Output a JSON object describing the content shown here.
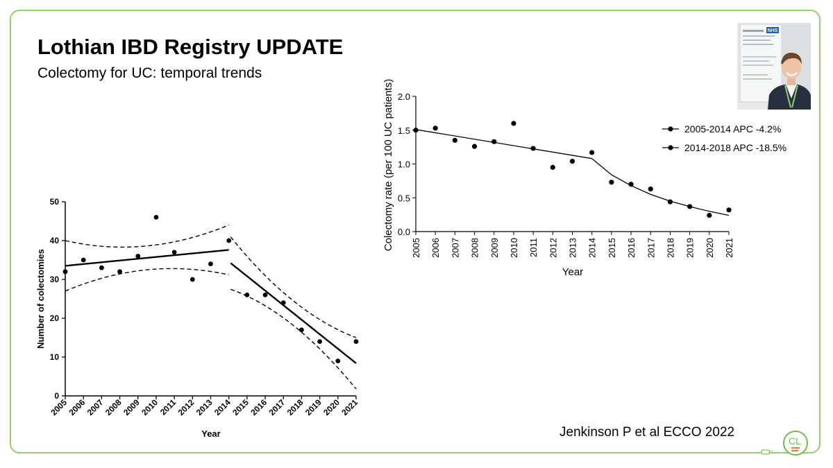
{
  "slide": {
    "title": "Lothian IBD Registry UPDATE",
    "subtitle": "Colectomy for UC: temporal trends",
    "citation": "Jenkinson P et al ECCO 2022",
    "logo_text": "CL",
    "photo_sign": "NHS"
  },
  "colors": {
    "border": "#8fd16e",
    "logo_green": "#6bbf45",
    "logo_orange": "#e8793a",
    "ink": "#000000"
  },
  "chart_data": [
    {
      "id": "counts",
      "type": "scatter",
      "title": "",
      "xlabel": "Year",
      "ylabel": "Number of colectomies",
      "categories": [
        "2005",
        "2006",
        "2007",
        "2008",
        "2009",
        "2010",
        "2011",
        "2012",
        "2013",
        "2014",
        "2015",
        "2016",
        "2017",
        "2018",
        "2019",
        "2020",
        "2021"
      ],
      "values": [
        32,
        35,
        33,
        32,
        36,
        46,
        37,
        30,
        34,
        40,
        26,
        26,
        24,
        17,
        14,
        9,
        14
      ],
      "ylim": [
        0,
        50
      ],
      "yticks": [
        "0",
        "10",
        "20",
        "30",
        "40",
        "50"
      ],
      "fits": [
        {
          "x": [
            2005,
            2014
          ],
          "y": [
            33.5,
            37.6
          ],
          "lower": [
            27,
            31.2
          ],
          "upper": [
            40,
            44
          ]
        },
        {
          "x": [
            2014.1,
            2021
          ],
          "y": [
            34.2,
            8.4
          ],
          "lower": [
            27.5,
            1.8
          ],
          "upper": [
            41,
            15
          ]
        }
      ]
    },
    {
      "id": "rates",
      "type": "scatter",
      "title": "",
      "xlabel": "Year",
      "ylabel": "Colectomy rate (per 100 UC patients)",
      "categories": [
        "2005",
        "2006",
        "2007",
        "2008",
        "2009",
        "2010",
        "2011",
        "2012",
        "2013",
        "2014",
        "2015",
        "2016",
        "2017",
        "2018",
        "2019",
        "2020",
        "2021"
      ],
      "values": [
        1.5,
        1.53,
        1.35,
        1.26,
        1.33,
        1.6,
        1.23,
        0.95,
        1.04,
        1.17,
        0.73,
        0.7,
        0.63,
        0.44,
        0.37,
        0.24,
        0.32
      ],
      "ylim": [
        0,
        2.0
      ],
      "yticks": [
        "0.0",
        "0.5",
        "1.0",
        "1.5",
        "2.0"
      ],
      "series": [
        {
          "name": "2005-2014 APC -4.2%",
          "x": [
            2005,
            2014
          ],
          "y": [
            1.51,
            1.08
          ]
        },
        {
          "name": "2014-2018 APC -18.5%",
          "x": [
            2014,
            2015,
            2016,
            2017,
            2018,
            2019,
            2020,
            2021
          ],
          "y": [
            1.08,
            0.84,
            0.68,
            0.55,
            0.45,
            0.37,
            0.3,
            0.24
          ]
        }
      ],
      "legend": "top-right"
    }
  ]
}
